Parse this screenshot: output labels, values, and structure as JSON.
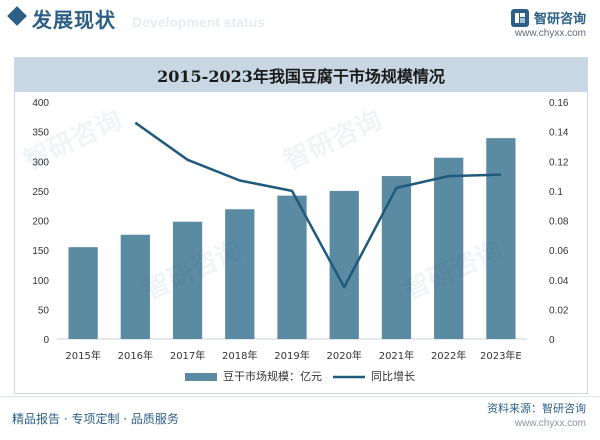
{
  "header": {
    "section_title": "发展现状",
    "section_subtitle_ghost": "Development status",
    "brand_name": "智研咨询",
    "brand_site": "www.chyxx.com",
    "brand_color": "#2c5f86"
  },
  "watermark_text": "智研咨询",
  "footer": {
    "slogan": "精品报告 · 专项定制 · 品质服务",
    "source": "资料来源：智研咨询",
    "site": "www.chyxx.com"
  },
  "chart_data": {
    "type": "bar",
    "title": "2015-2023年我国豆腐干市场规模情况",
    "categories": [
      "2015年",
      "2016年",
      "2017年",
      "2018年",
      "2019年",
      "2020年",
      "2021年",
      "2022年",
      "2023年E"
    ],
    "series": [
      {
        "name": "豆干市场规模：亿元",
        "type": "bar",
        "axis": "left",
        "color": "#5b8aa3",
        "values": [
          155,
          176,
          198,
          219,
          242,
          250,
          275,
          306,
          339
        ]
      },
      {
        "name": "同比增长",
        "type": "line",
        "axis": "right",
        "color": "#1f5a7d",
        "values": [
          null,
          0.146,
          0.121,
          0.107,
          0.1,
          0.035,
          0.102,
          0.11,
          0.111
        ]
      }
    ],
    "ylim_left": [
      0,
      400
    ],
    "yticks_left": [
      "0",
      "50",
      "100",
      "150",
      "200",
      "250",
      "300",
      "350",
      "400"
    ],
    "ylim_right": [
      0,
      0.16
    ],
    "yticks_right": [
      "0",
      "0.02",
      "0.04",
      "0.06",
      "0.08",
      "0.1",
      "0.12",
      "0.14",
      "0.16"
    ],
    "grid": false,
    "legend_position": "bottom"
  }
}
